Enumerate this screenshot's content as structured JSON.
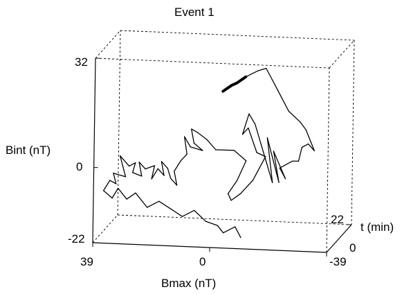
{
  "chart_data": {
    "type": "line",
    "title": "Event 1",
    "projection": "3d",
    "xlabel": "Bmax (nT)",
    "ylabel": "Bint (nT)",
    "zlabel": "t (min)",
    "x_ticks": [
      "39",
      "0",
      "-39"
    ],
    "y_ticks": [
      "32",
      "0",
      "-22"
    ],
    "z_ticks": [
      "22",
      "0"
    ],
    "xlim": [
      39,
      -39
    ],
    "ylim": [
      -22,
      32
    ],
    "zlim": [
      0,
      22
    ],
    "grid": false,
    "box": "dashed",
    "series": [
      {
        "color": "#000000",
        "note": "single trajectory; start marked by a short thick stroke",
        "values_xyz": [
          [
            3,
            17,
            18.0
          ],
          [
            0,
            19,
            17.5
          ],
          [
            -2,
            20,
            17.1
          ],
          [
            -5,
            22,
            16.7
          ],
          [
            -9,
            24,
            16.3
          ],
          [
            -12,
            25,
            16.0
          ],
          [
            -16,
            19,
            15.7
          ],
          [
            -20,
            13,
            15.3
          ],
          [
            -24,
            10,
            15.1
          ],
          [
            -26,
            8,
            14.8
          ],
          [
            -29,
            2,
            14.6
          ],
          [
            -27,
            4,
            14.4
          ],
          [
            -25,
            3,
            14.2
          ],
          [
            -24,
            -1,
            14.0
          ],
          [
            -22,
            -1,
            13.8
          ],
          [
            -20,
            -2,
            13.6
          ],
          [
            -18,
            -3,
            13.4
          ],
          [
            -20,
            -6,
            13.2
          ],
          [
            -16,
            2,
            13.0
          ],
          [
            -18,
            -7,
            12.8
          ],
          [
            -14,
            6,
            12.6
          ],
          [
            -16,
            -7,
            12.4
          ],
          [
            -10,
            10,
            12.2
          ],
          [
            -8,
            13,
            12.0
          ],
          [
            -6,
            7,
            11.8
          ],
          [
            -8,
            9,
            11.6
          ],
          [
            -11,
            2,
            11.4
          ],
          [
            -14,
            1,
            11.2
          ],
          [
            -10,
            -6,
            11.0
          ],
          [
            -6,
            -10,
            10.8
          ],
          [
            -3,
            -12,
            10.6
          ],
          [
            -2,
            -10,
            10.4
          ],
          [
            -5,
            -6,
            10.2
          ],
          [
            -8,
            0,
            10.0
          ],
          [
            -4,
            3,
            9.8
          ],
          [
            2,
            3,
            9.6
          ],
          [
            5,
            6,
            9.4
          ],
          [
            8,
            8,
            9.2
          ],
          [
            10,
            9,
            9.0
          ],
          [
            9,
            5,
            8.8
          ],
          [
            6,
            3,
            8.6
          ],
          [
            10,
            4,
            8.4
          ],
          [
            12,
            7,
            8.2
          ],
          [
            11,
            2,
            8.0
          ],
          [
            13,
            0,
            7.8
          ],
          [
            15,
            -3,
            7.6
          ],
          [
            14,
            -7,
            7.4
          ],
          [
            16,
            -5,
            7.2
          ],
          [
            17,
            -2,
            7.0
          ],
          [
            19,
            0,
            6.8
          ],
          [
            18,
            -4,
            6.6
          ],
          [
            20,
            -2,
            6.4
          ],
          [
            22,
            -5,
            6.2
          ],
          [
            21,
            -1,
            6.0
          ],
          [
            24,
            -2,
            5.8
          ],
          [
            26,
            0,
            5.6
          ],
          [
            25,
            -4,
            5.4
          ],
          [
            28,
            -3,
            5.2
          ],
          [
            27,
            0,
            5.0
          ],
          [
            29,
            -1,
            4.8
          ],
          [
            32,
            2,
            4.6
          ],
          [
            30,
            -4,
            4.4
          ],
          [
            34,
            -3,
            4.2
          ],
          [
            33,
            -6,
            4.0
          ],
          [
            35,
            -5,
            3.8
          ],
          [
            37,
            -8,
            3.6
          ],
          [
            34,
            -10,
            3.4
          ],
          [
            32,
            -7,
            3.2
          ],
          [
            29,
            -10,
            3.0
          ],
          [
            26,
            -8,
            2.8
          ],
          [
            22,
            -12,
            2.6
          ],
          [
            18,
            -10,
            2.4
          ],
          [
            14,
            -12,
            2.2
          ],
          [
            10,
            -14,
            2.0
          ],
          [
            6,
            -12,
            1.8
          ],
          [
            2,
            -15,
            1.6
          ],
          [
            -2,
            -16,
            1.4
          ],
          [
            -4,
            -18,
            1.2
          ],
          [
            -8,
            -16,
            1.0
          ],
          [
            -10,
            -19,
            0.8
          ]
        ]
      }
    ]
  }
}
